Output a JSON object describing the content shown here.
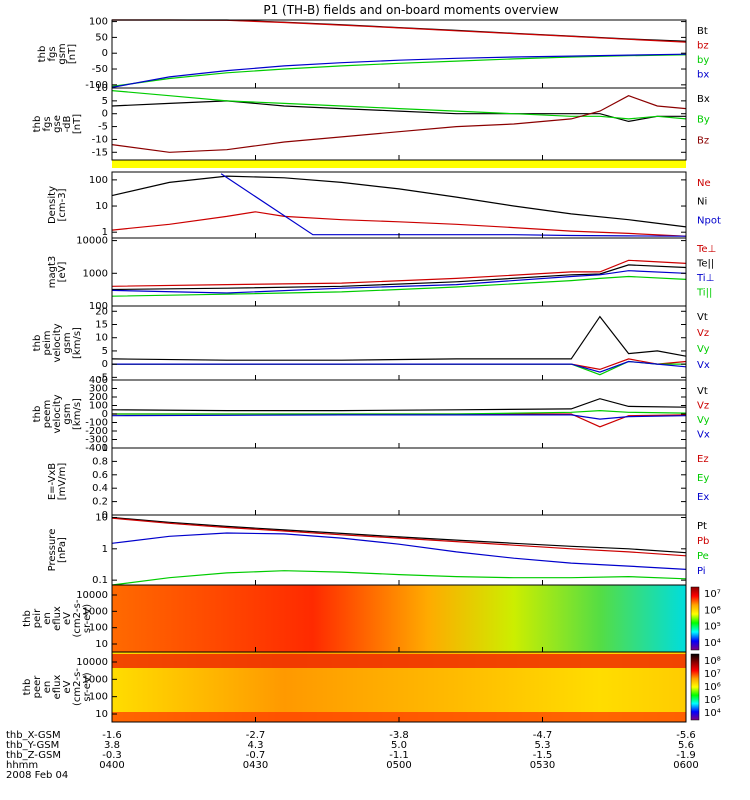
{
  "title": "P1 (TH-B) fields and on-board moments overview",
  "chart_data": [
    {
      "type": "line",
      "ylabel": [
        "thb",
        "fgs",
        "gsm",
        "[nT]"
      ],
      "yticks": [
        100,
        50,
        0,
        -50,
        -100
      ],
      "ylim": [
        -110,
        105
      ],
      "legend": [
        {
          "label": "Bt",
          "color": "#000000"
        },
        {
          "label": "bz",
          "color": "#cc0000"
        },
        {
          "label": "by",
          "color": "#00cc00"
        },
        {
          "label": "bx",
          "color": "#0000cc"
        }
      ],
      "series": [
        {
          "name": "Bt",
          "color": "#000000",
          "x": [
            0,
            0.1,
            0.2,
            0.3,
            0.4,
            0.5,
            0.6,
            0.7,
            0.8,
            0.9,
            1.0
          ],
          "values": [
            118,
            112,
            105,
            98,
            90,
            81,
            72,
            63,
            54,
            45,
            38
          ]
        },
        {
          "name": "bz",
          "color": "#cc0000",
          "x": [
            0,
            0.1,
            0.2,
            0.3,
            0.4,
            0.5,
            0.6,
            0.7,
            0.8,
            0.9,
            1.0
          ],
          "values": [
            117,
            111,
            104,
            97,
            89,
            80,
            71,
            62,
            53,
            44,
            35
          ]
        },
        {
          "name": "by",
          "color": "#00cc00",
          "x": [
            0,
            0.1,
            0.2,
            0.3,
            0.4,
            0.5,
            0.6,
            0.7,
            0.8,
            0.9,
            1.0
          ],
          "values": [
            -105,
            -80,
            -62,
            -50,
            -40,
            -32,
            -25,
            -18,
            -12,
            -8,
            -5
          ]
        },
        {
          "name": "bx",
          "color": "#0000cc",
          "x": [
            0,
            0.1,
            0.2,
            0.3,
            0.4,
            0.5,
            0.6,
            0.7,
            0.8,
            0.9,
            1.0
          ],
          "values": [
            -108,
            -75,
            -55,
            -40,
            -30,
            -22,
            -16,
            -12,
            -9,
            -6,
            -3
          ]
        }
      ]
    },
    {
      "type": "line",
      "ylabel": [
        "thb",
        "fgs",
        "gse",
        "-dB",
        "[nT]"
      ],
      "yticks": [
        10,
        5,
        0,
        -5,
        -10,
        -15
      ],
      "ylim": [
        -18,
        10
      ],
      "legend": [
        {
          "label": "Bx",
          "color": "#000000"
        },
        {
          "label": "By",
          "color": "#00cc00"
        },
        {
          "label": "Bz",
          "color": "#8b0000"
        }
      ],
      "series": [
        {
          "name": "Bx",
          "color": "#000000",
          "x": [
            0,
            0.1,
            0.2,
            0.3,
            0.4,
            0.5,
            0.6,
            0.7,
            0.8,
            0.85,
            0.9,
            0.95,
            1.0
          ],
          "values": [
            3,
            4,
            5,
            3,
            2,
            1,
            0,
            0,
            0,
            0,
            -3,
            -1,
            -1
          ]
        },
        {
          "name": "By",
          "color": "#00cc00",
          "x": [
            0,
            0.1,
            0.2,
            0.3,
            0.4,
            0.5,
            0.6,
            0.7,
            0.8,
            0.85,
            0.9,
            0.95,
            1.0
          ],
          "values": [
            9,
            7,
            5,
            4,
            3,
            2,
            1,
            0,
            -1,
            -1,
            -2,
            -1,
            -2
          ]
        },
        {
          "name": "Bz",
          "color": "#8b0000",
          "x": [
            0,
            0.1,
            0.2,
            0.3,
            0.4,
            0.5,
            0.6,
            0.7,
            0.8,
            0.85,
            0.9,
            0.95,
            1.0
          ],
          "values": [
            -12,
            -15,
            -14,
            -11,
            -9,
            -7,
            -5,
            -4,
            -2,
            1,
            7,
            3,
            2
          ]
        }
      ]
    },
    {
      "type": "line",
      "scale": "log",
      "ylabel": [
        "Density",
        "[cm-3]"
      ],
      "yticks": [
        100,
        10,
        1
      ],
      "ylim": [
        0.6,
        200
      ],
      "legend": [
        {
          "label": "Ne",
          "color": "#cc0000"
        },
        {
          "label": "Ni",
          "color": "#000000"
        },
        {
          "label": "Npot",
          "color": "#0000cc"
        }
      ],
      "series": [
        {
          "name": "Ni",
          "color": "#000000",
          "x": [
            0,
            0.1,
            0.2,
            0.3,
            0.4,
            0.5,
            0.6,
            0.7,
            0.8,
            0.9,
            1.0
          ],
          "values": [
            25,
            80,
            140,
            120,
            80,
            45,
            22,
            10,
            5,
            3,
            1.6
          ]
        },
        {
          "name": "Ne",
          "color": "#cc0000",
          "x": [
            0,
            0.1,
            0.2,
            0.25,
            0.3,
            0.4,
            0.5,
            0.6,
            0.7,
            0.8,
            0.9,
            1.0
          ],
          "values": [
            1.2,
            2,
            4,
            6,
            4,
            3,
            2.5,
            2,
            1.5,
            1.1,
            0.9,
            0.7
          ]
        },
        {
          "name": "Npot",
          "color": "#0000cc",
          "x": [
            0.19,
            0.35,
            0.5,
            0.7,
            0.8,
            0.9,
            1.0
          ],
          "values": [
            170,
            0.8,
            0.8,
            0.8,
            0.75,
            0.72,
            0.7
          ]
        }
      ]
    },
    {
      "type": "line",
      "scale": "log",
      "ylabel": [
        "magt3",
        "[eV]"
      ],
      "yticks": [
        10000,
        1000,
        100
      ],
      "ylim": [
        100,
        12000
      ],
      "legend": [
        {
          "label": "Te⊥",
          "color": "#cc0000"
        },
        {
          "label": "Te||",
          "color": "#000000"
        },
        {
          "label": "Ti⊥",
          "color": "#0000cc"
        },
        {
          "label": "Ti||",
          "color": "#00cc00"
        }
      ],
      "series": [
        {
          "name": "Te⊥",
          "color": "#cc0000",
          "x": [
            0,
            0.2,
            0.4,
            0.6,
            0.8,
            0.85,
            0.9,
            1.0
          ],
          "values": [
            400,
            450,
            500,
            700,
            1100,
            1100,
            2500,
            2000
          ]
        },
        {
          "name": "Te||",
          "color": "#000000",
          "x": [
            0,
            0.2,
            0.4,
            0.6,
            0.8,
            0.85,
            0.9,
            1.0
          ],
          "values": [
            320,
            350,
            400,
            550,
            900,
            950,
            1800,
            1500
          ]
        },
        {
          "name": "Ti⊥",
          "color": "#0000cc",
          "x": [
            0,
            0.2,
            0.4,
            0.6,
            0.8,
            0.85,
            0.9,
            1.0
          ],
          "values": [
            300,
            250,
            350,
            450,
            800,
            900,
            1200,
            1000
          ]
        },
        {
          "name": "Ti||",
          "color": "#00cc00",
          "x": [
            0,
            0.2,
            0.4,
            0.6,
            0.8,
            0.85,
            0.9,
            1.0
          ],
          "values": [
            200,
            230,
            270,
            380,
            600,
            700,
            800,
            650
          ]
        }
      ]
    },
    {
      "type": "line",
      "ylabel": [
        "thb",
        "peim",
        "velocity",
        "gsm",
        "[km/s]"
      ],
      "yticks": [
        20,
        15,
        10,
        5,
        0,
        -5
      ],
      "ylim": [
        -6,
        22
      ],
      "legend": [
        {
          "label": "Vt",
          "color": "#000000"
        },
        {
          "label": "Vz",
          "color": "#cc0000"
        },
        {
          "label": "Vy",
          "color": "#00cc00"
        },
        {
          "label": "Vx",
          "color": "#0000cc"
        }
      ],
      "series": [
        {
          "name": "Vt",
          "color": "#000000",
          "x": [
            0,
            0.2,
            0.4,
            0.6,
            0.8,
            0.85,
            0.9,
            0.95,
            1.0
          ],
          "values": [
            2,
            1.5,
            1.5,
            2,
            2,
            18,
            4,
            5,
            3
          ]
        },
        {
          "name": "Vz",
          "color": "#cc0000",
          "x": [
            0,
            0.2,
            0.4,
            0.6,
            0.8,
            0.85,
            0.9,
            0.95,
            1.0
          ],
          "values": [
            0,
            0,
            0,
            0,
            0,
            -2,
            2,
            0,
            1
          ]
        },
        {
          "name": "Vy",
          "color": "#00cc00",
          "x": [
            0,
            0.2,
            0.4,
            0.6,
            0.8,
            0.85,
            0.9,
            0.95,
            1.0
          ],
          "values": [
            0,
            0,
            0,
            0,
            0,
            -4,
            1,
            0,
            0
          ]
        },
        {
          "name": "Vx",
          "color": "#0000cc",
          "x": [
            0,
            0.2,
            0.4,
            0.6,
            0.8,
            0.85,
            0.9,
            0.95,
            1.0
          ],
          "values": [
            0,
            0,
            0,
            0,
            0,
            -3,
            1,
            0,
            -1
          ]
        }
      ]
    },
    {
      "type": "line",
      "ylabel": [
        "thb",
        "peem",
        "velocity",
        "gsm",
        "[km/s]"
      ],
      "yticks": [
        400,
        300,
        200,
        100,
        0,
        -100,
        -200,
        -300,
        -400
      ],
      "ylim": [
        -400,
        400
      ],
      "legend": [
        {
          "label": "Vt",
          "color": "#000000"
        },
        {
          "label": "Vz",
          "color": "#cc0000"
        },
        {
          "label": "Vy",
          "color": "#00cc00"
        },
        {
          "label": "Vx",
          "color": "#0000cc"
        }
      ],
      "series": [
        {
          "name": "Vt",
          "color": "#000000",
          "x": [
            0,
            0.2,
            0.4,
            0.6,
            0.8,
            0.85,
            0.9,
            1.0
          ],
          "values": [
            50,
            40,
            40,
            50,
            60,
            180,
            90,
            80
          ]
        },
        {
          "name": "Vz",
          "color": "#cc0000",
          "x": [
            0,
            0.2,
            0.4,
            0.6,
            0.8,
            0.85,
            0.9,
            1.0
          ],
          "values": [
            0,
            0,
            0,
            0,
            0,
            -150,
            -20,
            -10
          ]
        },
        {
          "name": "Vy",
          "color": "#00cc00",
          "x": [
            0,
            0.2,
            0.4,
            0.6,
            0.8,
            0.85,
            0.9,
            1.0
          ],
          "values": [
            0,
            0,
            0,
            0,
            20,
            40,
            20,
            10
          ]
        },
        {
          "name": "Vx",
          "color": "#0000cc",
          "x": [
            0,
            0.2,
            0.4,
            0.6,
            0.8,
            0.85,
            0.9,
            1.0
          ],
          "values": [
            -20,
            -15,
            -10,
            -10,
            -10,
            -60,
            -30,
            -20
          ]
        }
      ]
    },
    {
      "type": "line",
      "ylabel": [
        "E=-VxB",
        "[mV/m]"
      ],
      "yticks": [
        1.0,
        0.8,
        0.6,
        0.4,
        0.2,
        0.0
      ],
      "ylim": [
        0,
        1
      ],
      "legend": [
        {
          "label": "Ez",
          "color": "#cc0000"
        },
        {
          "label": "Ey",
          "color": "#00cc00"
        },
        {
          "label": "Ex",
          "color": "#0000cc"
        }
      ],
      "series": []
    },
    {
      "type": "line",
      "scale": "log",
      "ylabel": [
        "Pressure",
        "[nPa]"
      ],
      "yticks": [
        10.0,
        1.0,
        0.1
      ],
      "ylim": [
        0.07,
        12
      ],
      "legend": [
        {
          "label": "Pt",
          "color": "#000000"
        },
        {
          "label": "Pb",
          "color": "#cc0000"
        },
        {
          "label": "Pe",
          "color": "#00cc00"
        },
        {
          "label": "Pi",
          "color": "#0000cc"
        }
      ],
      "series": [
        {
          "name": "Pt",
          "color": "#000000",
          "x": [
            0,
            0.1,
            0.2,
            0.3,
            0.4,
            0.5,
            0.6,
            0.7,
            0.8,
            0.9,
            1.0
          ],
          "values": [
            10,
            7,
            5.2,
            4,
            3.1,
            2.4,
            1.9,
            1.5,
            1.2,
            1.0,
            0.75
          ]
        },
        {
          "name": "Pb",
          "color": "#cc0000",
          "x": [
            0,
            0.1,
            0.2,
            0.3,
            0.4,
            0.5,
            0.6,
            0.7,
            0.8,
            0.9,
            1.0
          ],
          "values": [
            9.5,
            6.5,
            4.8,
            3.7,
            2.8,
            2.2,
            1.7,
            1.3,
            1.0,
            0.8,
            0.6
          ]
        },
        {
          "name": "Pi",
          "color": "#0000cc",
          "x": [
            0,
            0.1,
            0.2,
            0.3,
            0.4,
            0.5,
            0.6,
            0.7,
            0.8,
            0.9,
            1.0
          ],
          "values": [
            1.5,
            2.5,
            3.2,
            3.0,
            2.2,
            1.4,
            0.8,
            0.5,
            0.35,
            0.28,
            0.22
          ]
        },
        {
          "name": "Pe",
          "color": "#00cc00",
          "x": [
            0,
            0.1,
            0.2,
            0.3,
            0.4,
            0.5,
            0.6,
            0.7,
            0.8,
            0.9,
            1.0
          ],
          "values": [
            0.07,
            0.12,
            0.17,
            0.2,
            0.18,
            0.15,
            0.13,
            0.12,
            0.12,
            0.13,
            0.11
          ]
        }
      ]
    },
    {
      "type": "heatmap",
      "ylabel": [
        "thb",
        "peir",
        "en",
        "eflux",
        "eV",
        "(cm2-s-",
        "sr-eV)"
      ],
      "yticks": [
        "10000",
        "1000",
        "100",
        "10"
      ],
      "colorbar_labels": [
        "10⁷",
        "10⁶",
        "10⁵",
        "10⁴"
      ],
      "colorbar_colors": [
        "#8b0000",
        "#ff0000",
        "#ffa500",
        "#ffff00",
        "#00ff00",
        "#00ffff",
        "#0000ff",
        "#800080"
      ]
    },
    {
      "type": "heatmap",
      "ylabel": [
        "thb",
        "peer",
        "en",
        "eflux",
        "eV",
        "(cm2-s-",
        "sr-eV)"
      ],
      "yticks": [
        "10000",
        "1000",
        "100",
        "10"
      ],
      "colorbar_labels": [
        "10⁸",
        "10⁷",
        "10⁶",
        "10⁵",
        "10⁴"
      ],
      "colorbar_colors": [
        "#000000",
        "#8b0000",
        "#ff0000",
        "#ffa500",
        "#ffff00",
        "#00ff00",
        "#00ffff",
        "#0000ff",
        "#800080"
      ]
    }
  ],
  "footer": {
    "row_labels": [
      "thb_X-GSM",
      "thb_Y-GSM",
      "thb_Z-GSM",
      "hhmm",
      "2008 Feb 04"
    ],
    "columns": [
      [
        "-1.6",
        "3.8",
        "-0.3",
        "0400"
      ],
      [
        "-2.7",
        "4.3",
        "-0.7",
        "0430"
      ],
      [
        "-3.8",
        "5.0",
        "-1.1",
        "0500"
      ],
      [
        "-4.7",
        "5.3",
        "-1.5",
        "0530"
      ],
      [
        "-5.6",
        "5.6",
        "-1.9",
        "0600"
      ]
    ]
  }
}
